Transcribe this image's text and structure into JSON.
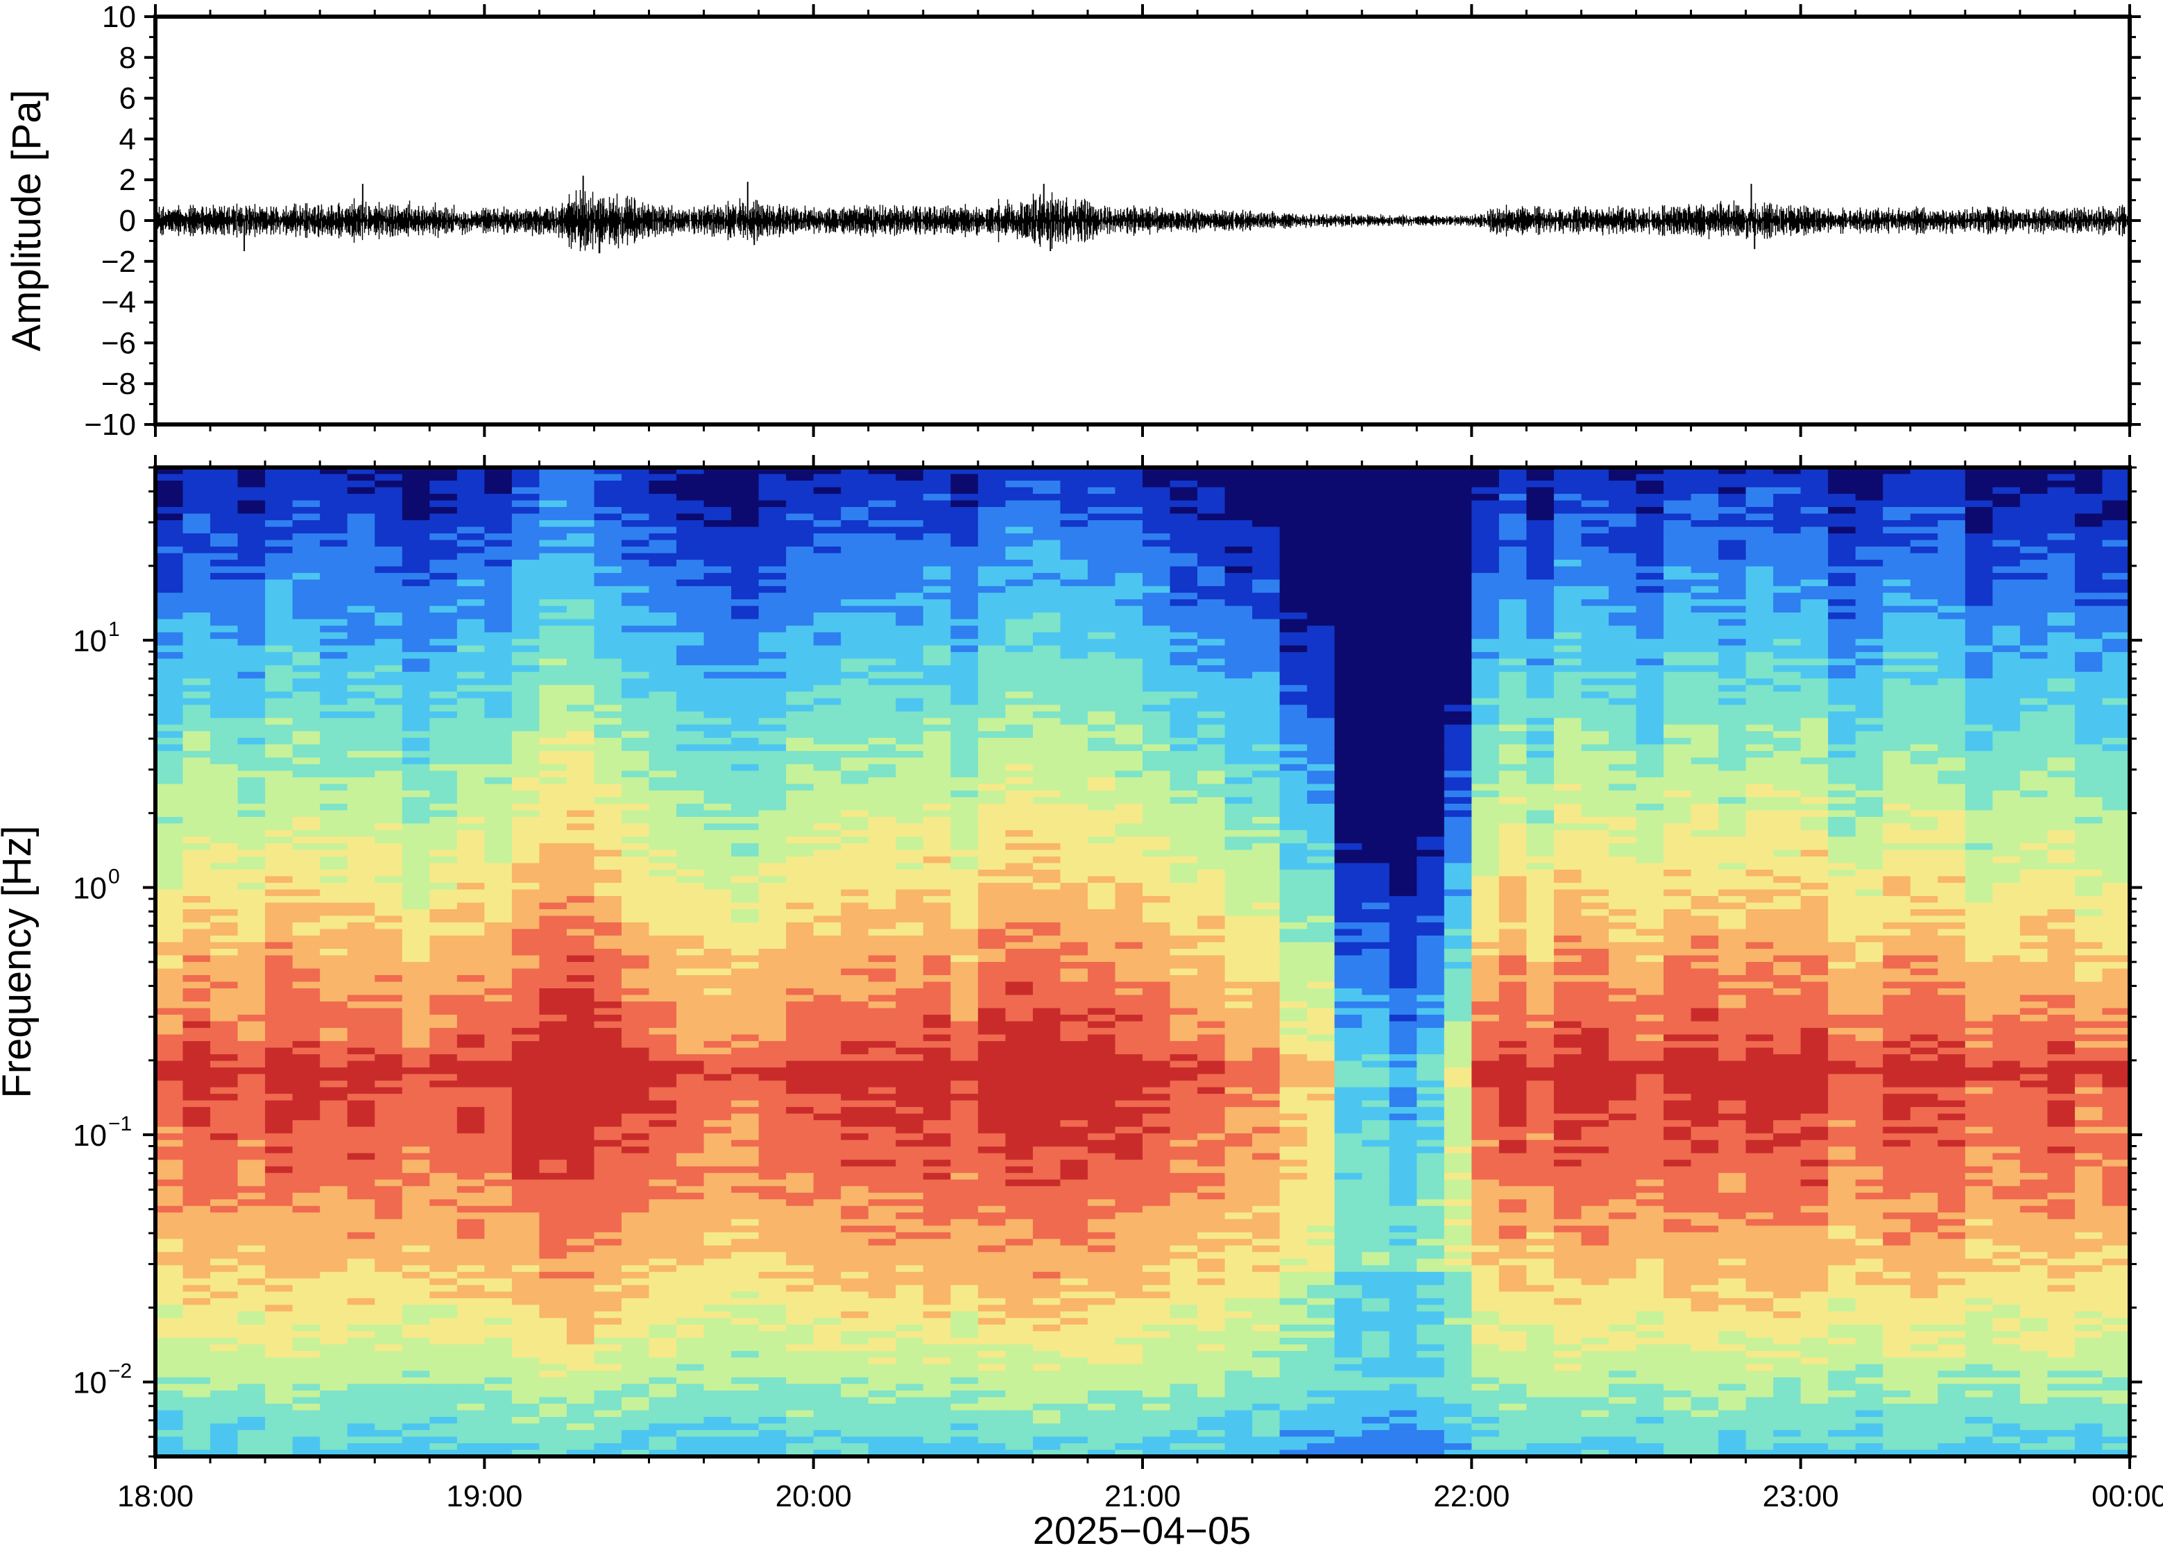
{
  "chart_data": [
    {
      "type": "line",
      "ylabel": "Amplitude [Pa]",
      "ylim": [
        -10,
        10
      ],
      "yticks": [
        10,
        8,
        6,
        4,
        2,
        0,
        -2,
        -4,
        -6,
        -8,
        -10
      ],
      "ytick_labels": [
        "10",
        "8",
        "6",
        "4",
        "2",
        "0",
        "−2",
        "−4",
        "−6",
        "−8",
        "−10"
      ],
      "x_range_hours": [
        18,
        24
      ],
      "grid": false,
      "series_color": "#000000",
      "noise_envelope": {
        "hours": [
          18.0,
          18.2,
          18.4,
          18.6,
          18.8,
          19.0,
          19.2,
          19.3,
          19.4,
          19.6,
          19.8,
          20.0,
          20.2,
          20.4,
          20.6,
          20.7,
          20.9,
          21.1,
          21.3,
          21.5,
          21.7,
          21.9,
          22.0,
          22.1,
          22.3,
          22.5,
          22.7,
          22.9,
          23.1,
          23.3,
          23.5,
          23.7,
          24.0
        ],
        "amplitude": [
          0.6,
          0.7,
          0.6,
          0.8,
          0.7,
          0.5,
          0.6,
          1.3,
          1.1,
          0.5,
          0.9,
          0.5,
          0.7,
          0.6,
          0.8,
          1.2,
          0.6,
          0.5,
          0.4,
          0.3,
          0.25,
          0.2,
          0.2,
          0.6,
          0.5,
          0.6,
          0.7,
          0.8,
          0.5,
          0.5,
          0.6,
          0.5,
          0.6
        ]
      },
      "peaks": [
        {
          "hour": 18.27,
          "value": -1.5
        },
        {
          "hour": 18.63,
          "value": 1.8
        },
        {
          "hour": 19.3,
          "value": 2.2
        },
        {
          "hour": 19.35,
          "value": -1.6
        },
        {
          "hour": 19.8,
          "value": 1.9
        },
        {
          "hour": 19.82,
          "value": -1.2
        },
        {
          "hour": 20.7,
          "value": 1.8
        },
        {
          "hour": 20.72,
          "value": -1.5
        },
        {
          "hour": 22.85,
          "value": 1.8
        },
        {
          "hour": 22.86,
          "value": -1.4
        }
      ]
    },
    {
      "type": "heatmap",
      "ylabel": "Frequency [Hz]",
      "xlabel": "2025−04−05",
      "yscale": "log",
      "ylim": [
        0.005,
        50
      ],
      "yticks": [
        10,
        1,
        0.1,
        0.01
      ],
      "ytick_labels": [
        {
          "base": "10",
          "exp": "1"
        },
        {
          "base": "10",
          "exp": "0"
        },
        {
          "base": "10",
          "exp": "−1"
        },
        {
          "base": "10",
          "exp": "−2"
        }
      ],
      "xticks_hours": [
        18,
        19,
        20,
        21,
        22,
        23,
        24
      ],
      "xtick_labels": [
        "18:00",
        "19:00",
        "20:00",
        "21:00",
        "22:00",
        "23:00",
        "00:00"
      ],
      "colormap": [
        "#0c0a6e",
        "#1236c9",
        "#2f7ff0",
        "#4cc6f0",
        "#7de3c9",
        "#c7f29a",
        "#f6e98a",
        "#f9b56a",
        "#ef6a4e",
        "#c92b2b"
      ],
      "column_intensity_profile": {
        "hours": [
          18.0,
          18.5,
          19.0,
          19.25,
          19.5,
          19.75,
          20.0,
          20.5,
          20.7,
          21.0,
          21.3,
          21.5,
          21.7,
          21.9,
          22.05,
          22.3,
          22.6,
          22.85,
          23.1,
          23.5,
          24.0
        ],
        "relative_level": [
          0.0,
          0.05,
          0.0,
          0.2,
          0.1,
          -0.05,
          0.05,
          0.05,
          0.2,
          0.0,
          -0.1,
          -0.35,
          -0.55,
          -0.6,
          0.0,
          0.05,
          0.05,
          0.15,
          0.0,
          0.0,
          0.0
        ]
      },
      "microseism_band_hz": [
        0.1,
        0.25
      ],
      "microseism_peak_hz": 0.18,
      "quiet_interval_hours": [
        21.55,
        22.05
      ]
    }
  ]
}
